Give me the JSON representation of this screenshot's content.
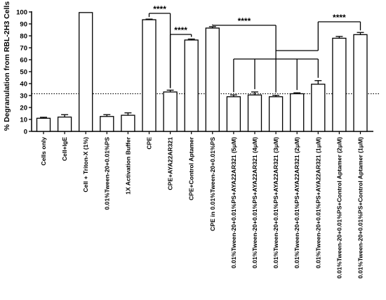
{
  "chart_data": {
    "type": "bar",
    "ylabel": "% Degranulation from RBL-2H3 Cells",
    "ylim": [
      0,
      100
    ],
    "yticks": [
      0,
      10,
      20,
      30,
      40,
      50,
      60,
      70,
      80,
      90,
      100
    ],
    "threshold": 31.5,
    "categories": [
      "Cells only",
      "Cell+IgE",
      "Cell + Triton-X (1%)",
      "0.01%Tween-20+0.01%PS",
      "1X Activation Buffer",
      "CPE",
      "CPE+AYA22AR321",
      "CPE+Control Aptamer",
      "CPE in 0.01%Tween-20+0.01%PS",
      "0.01%Tween-20+0.01%PS+AYA22AR321 (5μM)",
      "0.01%Tween-20+0.01%PS+AYA22AR321 (4μM)",
      "0.01%Tween-20+0.01%PS+AYA22AR321 (3μM)",
      "0.01%Tween-20+0.01%PS+AYA22AR321 (2μM)",
      "0.01%Tween-20+0.01%PS+AYA22AR321 (1μM)",
      "0.01%Tween-20+0.01%PS+Control Aptamer (2μM)",
      "0.01%Tween-20+0.01%PS+Control Aptamer (1μM)"
    ],
    "values": [
      11,
      12,
      99.5,
      12.5,
      13.5,
      93.5,
      33,
      76.5,
      86.5,
      29,
      30.5,
      29,
      31.5,
      39.5,
      78,
      81
    ],
    "errors": [
      0.8,
      2,
      0,
      1.5,
      2,
      0.5,
      1.5,
      0.8,
      1.2,
      1.5,
      2.5,
      1.2,
      0.8,
      3,
      1.5,
      1.8
    ],
    "significance": [
      {
        "label": "****",
        "from": 5,
        "to": 6
      },
      {
        "label": "****",
        "from": 7,
        "to": 6
      },
      {
        "label": "****",
        "from": 8,
        "to": [
          9,
          10,
          11,
          12,
          13
        ]
      },
      {
        "label": "****",
        "from": 15,
        "to": [
          9,
          10,
          11,
          12,
          13
        ]
      }
    ]
  }
}
